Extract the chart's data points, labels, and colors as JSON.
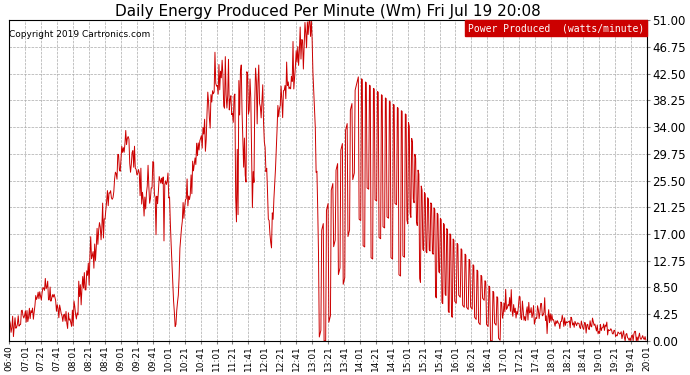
{
  "title": "Daily Energy Produced Per Minute (Wm) Fri Jul 19 20:08",
  "copyright": "Copyright 2019 Cartronics.com",
  "legend_label": "Power Produced  (watts/minute)",
  "legend_bg": "#cc0000",
  "legend_fg": "#ffffff",
  "line_color": "#cc0000",
  "bg_color": "#ffffff",
  "plot_bg": "#ffffff",
  "grid_color": "#aaaaaa",
  "ylim": [
    0,
    51.0
  ],
  "yticks": [
    0.0,
    4.25,
    8.5,
    12.75,
    17.0,
    21.25,
    25.5,
    29.75,
    34.0,
    38.25,
    42.5,
    46.75,
    51.0
  ],
  "xtick_labels": [
    "06:40",
    "07:01",
    "07:21",
    "07:41",
    "08:01",
    "08:21",
    "08:41",
    "09:01",
    "09:21",
    "09:41",
    "10:01",
    "10:21",
    "10:41",
    "11:01",
    "11:21",
    "11:41",
    "12:01",
    "12:21",
    "12:41",
    "13:01",
    "13:21",
    "13:41",
    "14:01",
    "14:21",
    "14:41",
    "15:01",
    "15:21",
    "15:41",
    "16:01",
    "16:21",
    "16:41",
    "17:01",
    "17:21",
    "17:41",
    "18:01",
    "18:21",
    "18:41",
    "19:01",
    "19:21",
    "19:41",
    "20:01"
  ],
  "title_fontsize": 11,
  "ytick_fontsize": 8.5,
  "xtick_fontsize": 6.5
}
